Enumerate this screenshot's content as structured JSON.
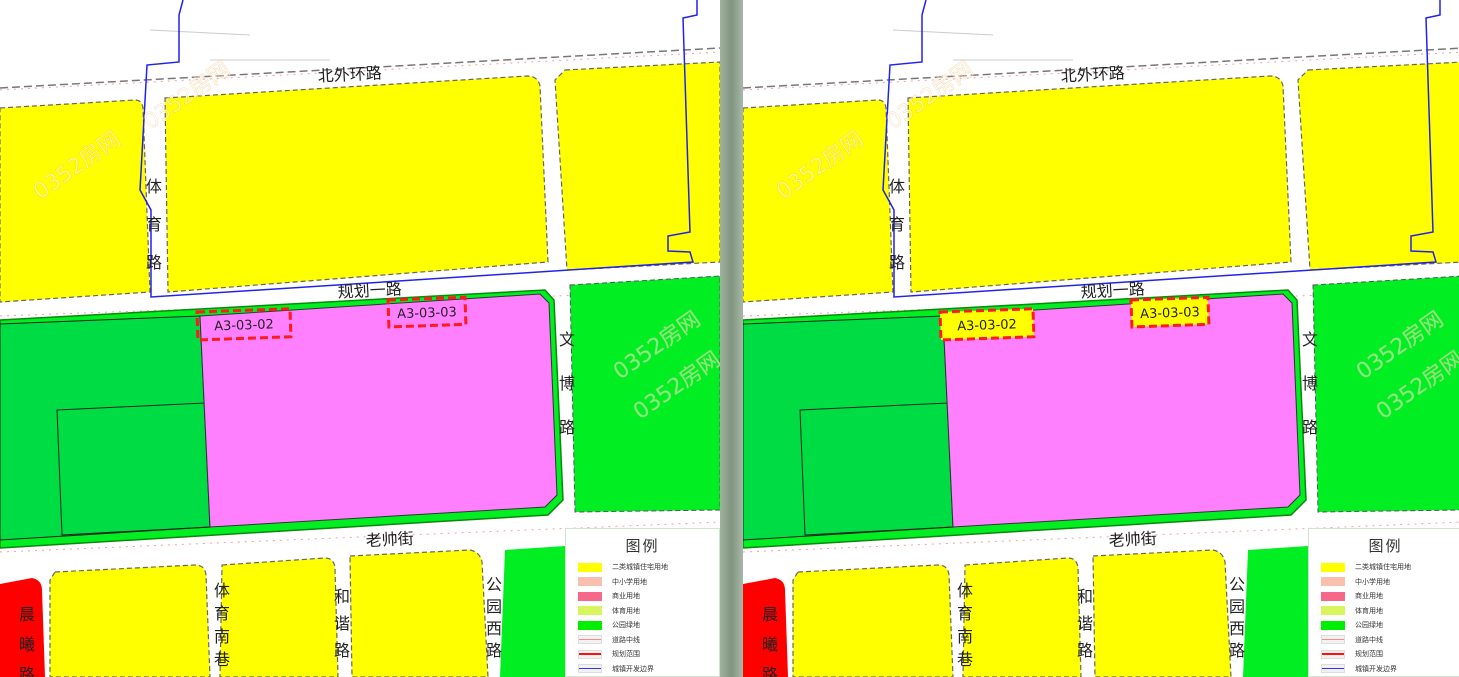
{
  "roads": {
    "north": "北外环路",
    "planned_1": "规划一路",
    "tiyu": "体育路",
    "wenbo": "文博路",
    "laoshuai": "老帅街",
    "chenxi": "晨曦路",
    "tiyu_nan": "体育南巷",
    "hexie": "和谐路",
    "gongyuan_xi": "公园西路"
  },
  "parcels": {
    "a": "A3-03-02",
    "b": "A3-03-03"
  },
  "panels": [
    {
      "parcel_fill": "none"
    },
    {
      "parcel_fill": "#ffff00"
    }
  ],
  "watermark": "0352房网",
  "legend": {
    "title": "图例",
    "items": [
      {
        "label": "二类城镇住宅用地",
        "type": "fill",
        "color": "#ffff00"
      },
      {
        "label": "中小学用地",
        "type": "fill",
        "color": "#f9bfae"
      },
      {
        "label": "商业用地",
        "type": "fill",
        "color": "#f7678a"
      },
      {
        "label": "体育用地",
        "type": "fill",
        "color": "#d8f560"
      },
      {
        "label": "公园绿地",
        "type": "fill",
        "color": "#00ee00"
      },
      {
        "label": "道路中线",
        "type": "line",
        "color": "#f28b8b"
      },
      {
        "label": "规划范围",
        "type": "dash",
        "color": "#ff1010"
      },
      {
        "label": "城镇开发边界",
        "type": "line",
        "color": "#3333ff"
      }
    ]
  },
  "colors": {
    "residential": "#ffff00",
    "commercial_pink": "#ff80ff",
    "park": "#00dd44",
    "park_bright": "#00ee22",
    "school_red": "#ff0000",
    "boundary_blue": "#2222ee",
    "plan_red": "#ff1a1a"
  }
}
